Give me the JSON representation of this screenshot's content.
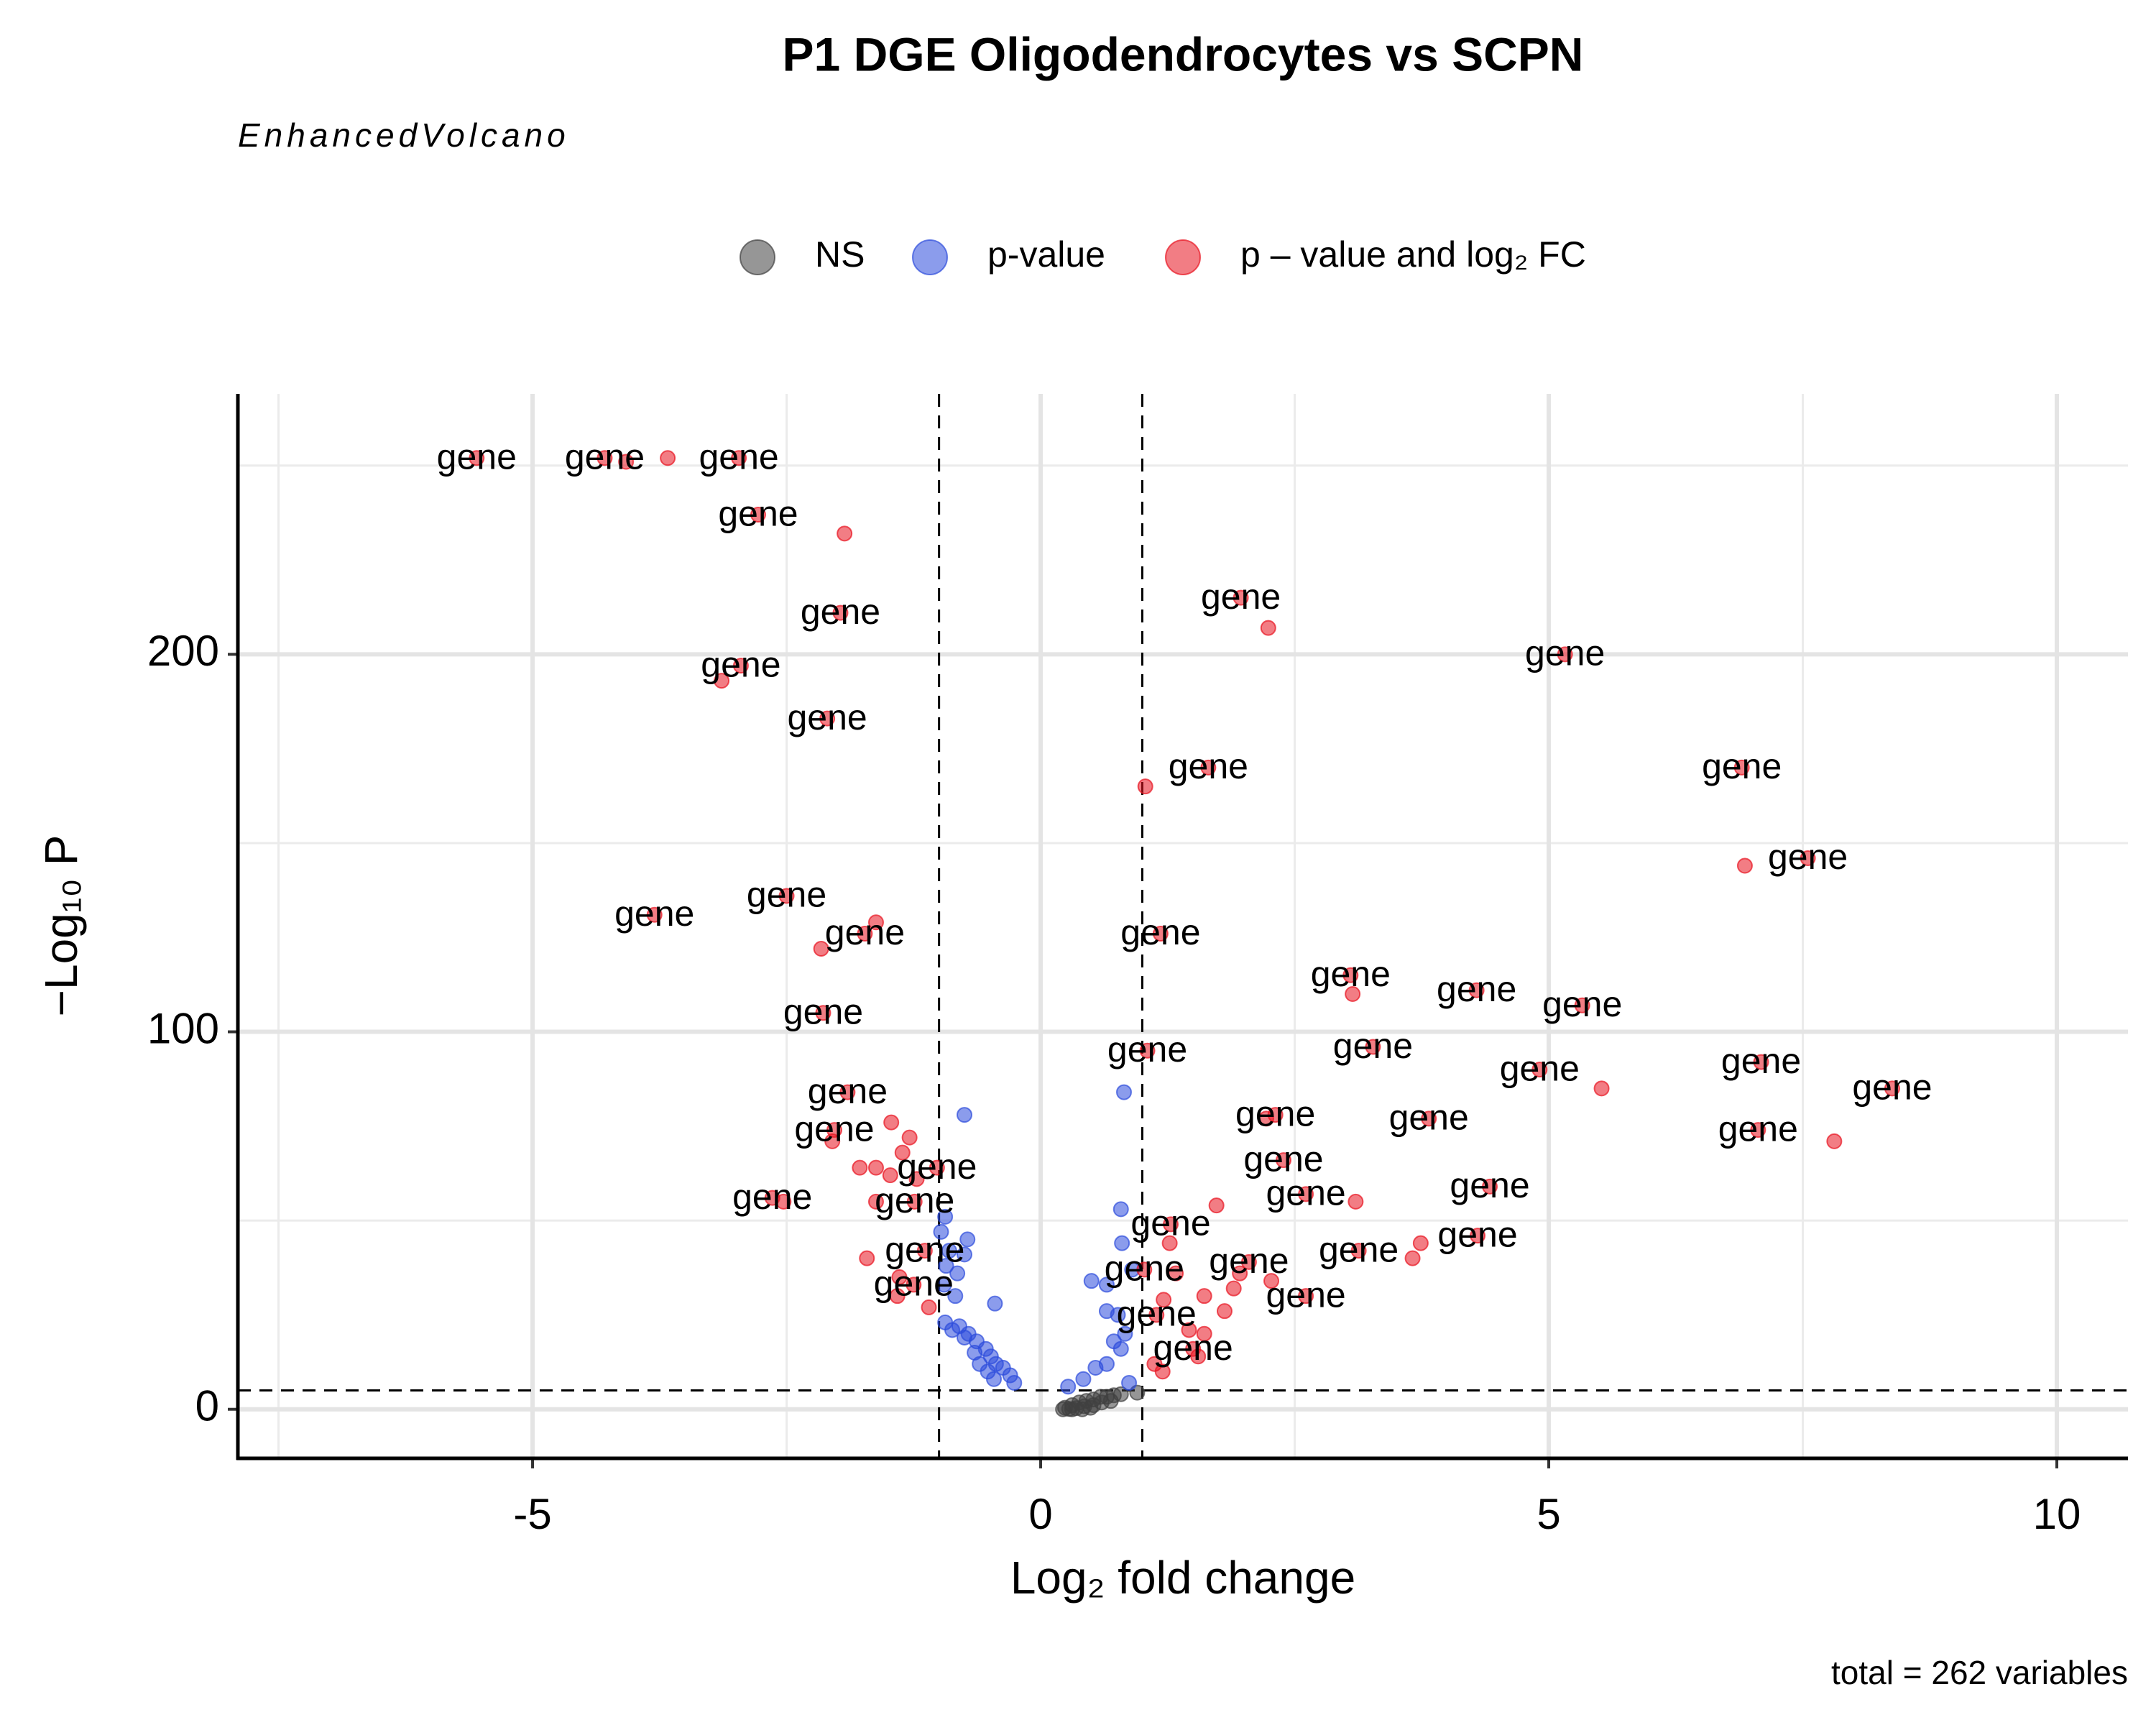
{
  "chart_data": {
    "type": "scatter",
    "title": "P1 DGE Oligodendrocytes vs SCPN",
    "subtitle": "EnhancedVolcano",
    "x_label": "Log₂ fold change",
    "y_label": "−Log₁₀ P",
    "caption": "total = 262 variables",
    "xlim": [
      -7.9,
      10.7
    ],
    "ylim": [
      -13,
      269
    ],
    "xticks": [
      -5,
      0,
      5,
      10
    ],
    "yticks": [
      0,
      100,
      200
    ],
    "xminor": [
      -7.5,
      -2.5,
      2.5,
      7.5
    ],
    "yminor": [
      50,
      150,
      250
    ],
    "grid": true,
    "fc_cutoffs": [
      -1,
      1
    ],
    "p_cutoff": 5,
    "legend": "top",
    "series": [
      {
        "name": "NS",
        "color": "#404040",
        "x": [
          0.24,
          0.31,
          0.38,
          0.45,
          0.52,
          0.59,
          0.65,
          0.72,
          0.79,
          0.95,
          0.28,
          0.35,
          0.43,
          0.52,
          0.6,
          0.69,
          0.22,
          0.31,
          0.41,
          0.49
        ],
        "values": [
          0.4,
          1.1,
          1.8,
          2.2,
          2.6,
          3.3,
          3.3,
          3.7,
          4.0,
          4.4,
          0.1,
          0.3,
          0.8,
          1.1,
          1.8,
          2.2,
          0.0,
          0.0,
          0.0,
          0.4
        ]
      },
      {
        "name": "p-value",
        "color": "#2c4bdc",
        "x": [
          -0.75,
          0.82,
          0.79,
          0.8,
          -0.94,
          -0.98,
          -0.72,
          -0.9,
          -0.75,
          -0.93,
          -0.82,
          0.5,
          0.65,
          0.9,
          -0.95,
          -0.84,
          -0.45,
          0.65,
          0.76,
          -0.94,
          -0.8,
          -0.71,
          -0.63,
          -0.54,
          -0.49,
          -0.44,
          -0.37,
          -0.3,
          -0.26,
          0.72,
          0.79,
          0.65,
          0.54,
          0.42,
          0.27,
          -0.87,
          -0.75,
          -0.65,
          -0.6,
          -0.52,
          -0.46,
          0.83,
          0.87
        ],
        "values": [
          78,
          84,
          53,
          44,
          51,
          47,
          45,
          42,
          41,
          38,
          36,
          34,
          33,
          37,
          33,
          30,
          28,
          26,
          25,
          23,
          22,
          20,
          18,
          16,
          14,
          12,
          11,
          9,
          7,
          18,
          16,
          12,
          11,
          8,
          6,
          21,
          19,
          15,
          12,
          10,
          8,
          20,
          7
        ]
      },
      {
        "name": "p – value and log₂ FC",
        "color": "#e8131f",
        "x": [
          -5.55,
          -4.29,
          -4.08,
          -3.67,
          -2.97,
          -2.78,
          -1.93,
          -1.97,
          -2.95,
          -3.14,
          -2.1,
          1.97,
          2.24,
          5.16,
          1.65,
          1.03,
          6.9,
          6.93,
          7.55,
          -3.8,
          -2.5,
          -1.62,
          -1.73,
          -2.16,
          1.18,
          3.05,
          3.07,
          4.29,
          5.33,
          -2.14,
          1.05,
          3.27,
          4.91,
          5.52,
          7.09,
          8.38,
          -1.9,
          2.31,
          2.22,
          3.82,
          -1.47,
          -2.03,
          -2.05,
          -1.29,
          7.06,
          7.81,
          -1.36,
          -1.02,
          -1.78,
          -1.62,
          2.39,
          -1.22,
          -1.48,
          -2.64,
          -2.53,
          2.61,
          3.1,
          4.42,
          -1.24,
          -1.62,
          1.73,
          1.28,
          1.27,
          4.3,
          3.74,
          3.66,
          3.13,
          -1.71,
          -1.14,
          2.05,
          1.96,
          1.02,
          1.33,
          2.27,
          -1.39,
          -1.25,
          -1.41,
          -1.1,
          2.61,
          1.61,
          1.9,
          1.81,
          1.21,
          1.14,
          1.46,
          1.61,
          1.5,
          1.55,
          1.12,
          1.2
        ],
        "values": [
          252,
          252,
          251,
          252,
          252,
          237,
          232,
          211,
          197,
          193,
          183,
          215,
          207,
          200,
          170,
          165,
          170,
          144,
          146,
          131,
          136,
          129,
          126,
          122,
          126,
          115,
          110,
          111,
          107,
          105,
          95,
          96,
          90,
          85,
          92,
          85,
          84,
          78,
          77,
          77,
          76,
          74,
          71,
          72,
          74,
          71,
          68,
          64,
          64,
          64,
          66,
          61,
          62,
          56,
          55,
          57,
          55,
          59,
          55,
          55,
          54,
          49,
          44,
          46,
          44,
          40,
          42,
          40,
          42,
          39,
          36,
          37,
          36,
          34,
          35,
          33,
          30,
          27,
          30,
          30,
          32,
          26,
          29,
          25,
          21,
          20,
          16,
          14,
          12,
          10
        ],
        "labels": [
          "gene",
          "gene",
          null,
          null,
          "gene",
          "gene",
          null,
          "gene",
          "gene",
          null,
          "gene",
          "gene",
          null,
          "gene",
          "gene",
          null,
          "gene",
          null,
          "gene",
          "gene",
          "gene",
          null,
          "gene",
          null,
          "gene",
          "gene",
          null,
          "gene",
          "gene",
          "gene",
          "gene",
          "gene",
          "gene",
          null,
          "gene",
          "gene",
          "gene",
          "gene",
          null,
          "gene",
          null,
          "gene",
          null,
          null,
          "gene",
          null,
          null,
          "gene",
          null,
          null,
          "gene",
          null,
          null,
          "gene",
          null,
          "gene",
          null,
          "gene",
          "gene",
          null,
          null,
          "gene",
          null,
          "gene",
          null,
          null,
          "gene",
          null,
          "gene",
          "gene",
          null,
          "gene",
          null,
          null,
          null,
          "gene",
          null,
          null,
          "gene",
          null,
          null,
          null,
          null,
          "gene",
          null,
          null,
          "gene",
          null,
          null,
          null
        ]
      }
    ]
  }
}
